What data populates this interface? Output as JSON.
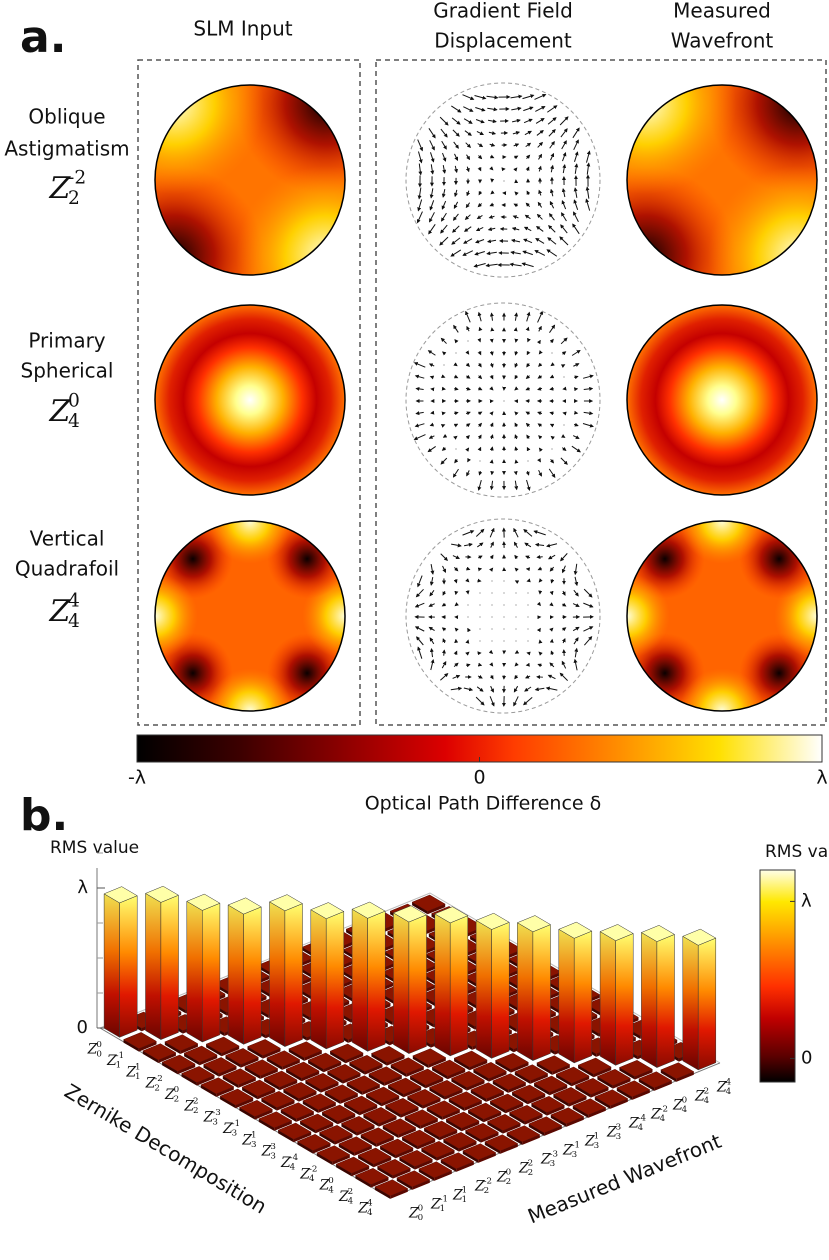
{
  "panel_a": {
    "label": "a.",
    "columns": [
      [
        "SLM Input"
      ],
      [
        "Gradient Field",
        "Displacement"
      ],
      [
        "Measured",
        "Wavefront"
      ]
    ],
    "rows": [
      {
        "name": [
          "Oblique",
          "Astigmatism"
        ],
        "term": {
          "symbol": "Z",
          "n": "2",
          "m": "-2"
        }
      },
      {
        "name": [
          "Primary",
          "Spherical"
        ],
        "term": {
          "symbol": "Z",
          "n": "4",
          "m": "0"
        }
      },
      {
        "name": [
          "Vertical",
          "Quadrafoil"
        ],
        "term": {
          "symbol": "Z",
          "n": "4",
          "m": "4"
        }
      }
    ],
    "colorbar": {
      "title": "Optical Path Difference δ",
      "lim": [
        -1,
        1
      ],
      "ticks": [
        {
          "value": -1,
          "label": "-λ"
        },
        0,
        {
          "value": 1,
          "label": "λ"
        }
      ]
    }
  },
  "panel_b": {
    "label": "b.",
    "z_axis_title": "RMS value",
    "zticks": [
      {
        "value": 1,
        "label": "λ"
      },
      0
    ],
    "x_axis_title": "Zernike Decomposition",
    "y_axis_title": "Measured Wavefront",
    "terms": [
      {
        "symbol": "Z",
        "n": "0",
        "m": "0"
      },
      {
        "symbol": "Z",
        "n": "1",
        "m": "-1"
      },
      {
        "symbol": "Z",
        "n": "1",
        "m": "1"
      },
      {
        "symbol": "Z",
        "n": "2",
        "m": "-2"
      },
      {
        "symbol": "Z",
        "n": "2",
        "m": "0"
      },
      {
        "symbol": "Z",
        "n": "2",
        "m": "2"
      },
      {
        "symbol": "Z",
        "n": "3",
        "m": "-3"
      },
      {
        "symbol": "Z",
        "n": "3",
        "m": "-1"
      },
      {
        "symbol": "Z",
        "n": "3",
        "m": "1"
      },
      {
        "symbol": "Z",
        "n": "3",
        "m": "3"
      },
      {
        "symbol": "Z",
        "n": "4",
        "m": "-4"
      },
      {
        "symbol": "Z",
        "n": "4",
        "m": "-2"
      },
      {
        "symbol": "Z",
        "n": "4",
        "m": "0"
      },
      {
        "symbol": "Z",
        "n": "4",
        "m": "2"
      },
      {
        "symbol": "Z",
        "n": "4",
        "m": "4"
      }
    ],
    "diagonal_rms": [
      0.96,
      0.98,
      0.94,
      0.93,
      0.97,
      0.93,
      0.95,
      0.94,
      0.95,
      0.92,
      0.92,
      0.89,
      0.89,
      0.9,
      0.89
    ],
    "colorbar": {
      "title": "RMS value",
      "lim": [
        -0.15,
        1.2
      ],
      "ticks": [
        {
          "value": 1,
          "label": "λ"
        },
        0
      ]
    }
  }
}
